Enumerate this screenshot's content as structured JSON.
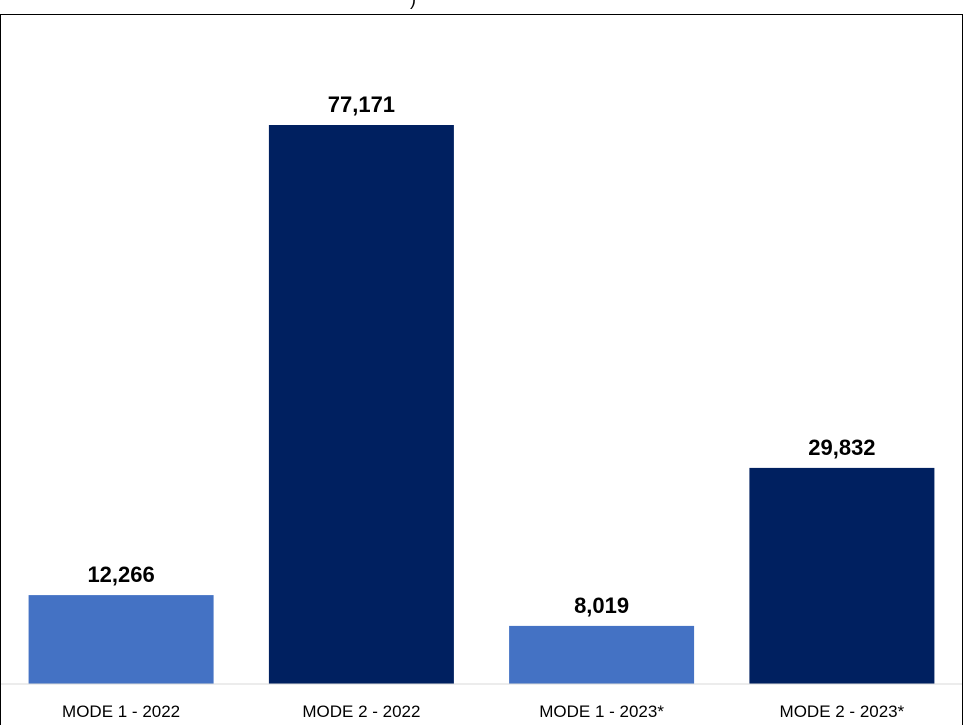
{
  "chart_data": {
    "type": "bar",
    "title": "",
    "xlabel": "",
    "ylabel": "",
    "categories": [
      "MODE 1 - 2022",
      "MODE 2 - 2022",
      "MODE 1 - 2023*",
      "MODE 2 - 2023*"
    ],
    "values": [
      12266,
      77171,
      8019,
      29832
    ],
    "value_labels": [
      "12,266",
      "77,171",
      "8,019",
      "29,832"
    ],
    "bar_colors": [
      "#4472C4",
      "#002060",
      "#4472C4",
      "#002060"
    ],
    "ylim": [
      0,
      84000
    ],
    "grid": false,
    "legend": "none"
  }
}
